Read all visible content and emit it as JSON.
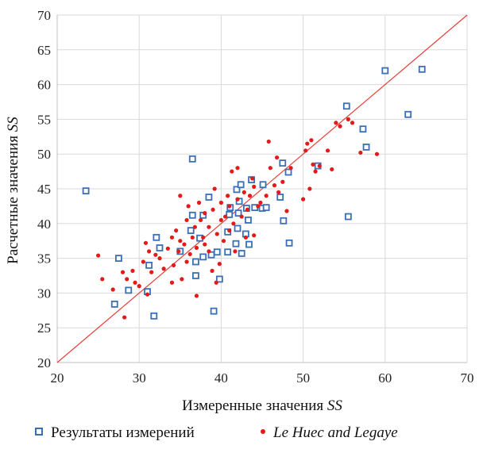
{
  "chart_data": {
    "type": "scatter",
    "xlabel": "Измеренные значения",
    "xlabel_symbol": "SS",
    "ylabel": "Расчетные значения",
    "ylabel_symbol": "SS",
    "xlim": [
      20,
      70
    ],
    "ylim": [
      20,
      70
    ],
    "xticks": [
      20,
      30,
      40,
      50,
      60,
      70
    ],
    "yticks": [
      20,
      25,
      30,
      35,
      40,
      45,
      50,
      55,
      60,
      65,
      70
    ],
    "grid": true,
    "legend_position": "bottom",
    "reference_line": {
      "name": "y = x",
      "from": [
        20,
        20
      ],
      "to": [
        70,
        70
      ],
      "color": "#e8403a"
    },
    "series": [
      {
        "name": "Результаты измерений",
        "marker": "open-square",
        "color": "#3a6fb5",
        "points": [
          [
            23.5,
            44.7
          ],
          [
            27.0,
            28.4
          ],
          [
            27.5,
            35.0
          ],
          [
            28.7,
            30.4
          ],
          [
            31.0,
            30.2
          ],
          [
            31.2,
            34.0
          ],
          [
            31.8,
            26.7
          ],
          [
            32.1,
            38.0
          ],
          [
            32.5,
            36.5
          ],
          [
            35.0,
            36.0
          ],
          [
            36.3,
            39.0
          ],
          [
            36.5,
            49.3
          ],
          [
            36.5,
            41.2
          ],
          [
            36.9,
            34.5
          ],
          [
            36.9,
            32.5
          ],
          [
            37.4,
            37.9
          ],
          [
            37.8,
            41.2
          ],
          [
            37.8,
            35.2
          ],
          [
            38.5,
            43.8
          ],
          [
            38.8,
            35.5
          ],
          [
            39.1,
            27.4
          ],
          [
            39.5,
            35.9
          ],
          [
            39.8,
            32.0
          ],
          [
            40.8,
            38.8
          ],
          [
            40.8,
            35.9
          ],
          [
            41.0,
            41.3
          ],
          [
            41.1,
            42.3
          ],
          [
            41.8,
            37.1
          ],
          [
            41.9,
            44.9
          ],
          [
            42.0,
            39.3
          ],
          [
            42.1,
            41.5
          ],
          [
            42.2,
            43.2
          ],
          [
            42.4,
            45.6
          ],
          [
            42.5,
            35.7
          ],
          [
            43.0,
            38.5
          ],
          [
            43.1,
            42.2
          ],
          [
            43.3,
            40.5
          ],
          [
            43.4,
            37.0
          ],
          [
            43.7,
            46.3
          ],
          [
            44.1,
            42.3
          ],
          [
            45.0,
            42.2
          ],
          [
            45.1,
            45.6
          ],
          [
            45.5,
            42.3
          ],
          [
            47.2,
            43.8
          ],
          [
            47.5,
            48.7
          ],
          [
            47.6,
            40.4
          ],
          [
            48.2,
            47.4
          ],
          [
            48.3,
            37.2
          ],
          [
            51.8,
            48.3
          ],
          [
            55.5,
            41.0
          ],
          [
            55.3,
            56.9
          ],
          [
            57.3,
            53.6
          ],
          [
            57.7,
            51.0
          ],
          [
            60.0,
            62.0
          ],
          [
            62.8,
            55.7
          ],
          [
            64.5,
            62.2
          ]
        ]
      },
      {
        "name": "Le Huec and Legaye",
        "marker": "filled-circle",
        "color": "#e21a1a",
        "points": [
          [
            25.0,
            35.4
          ],
          [
            25.5,
            32.0
          ],
          [
            26.8,
            30.5
          ],
          [
            28.0,
            33.0
          ],
          [
            28.2,
            26.5
          ],
          [
            28.5,
            32.0
          ],
          [
            29.2,
            33.2
          ],
          [
            29.5,
            31.5
          ],
          [
            30.0,
            31.0
          ],
          [
            30.5,
            34.5
          ],
          [
            30.8,
            37.2
          ],
          [
            31.0,
            29.8
          ],
          [
            31.2,
            36.0
          ],
          [
            31.5,
            33.0
          ],
          [
            32.0,
            35.5
          ],
          [
            32.5,
            35.0
          ],
          [
            33.0,
            33.5
          ],
          [
            33.5,
            36.4
          ],
          [
            34.0,
            38.0
          ],
          [
            34.0,
            31.5
          ],
          [
            34.2,
            34.0
          ],
          [
            34.5,
            39.0
          ],
          [
            34.8,
            36.0
          ],
          [
            35.0,
            37.5
          ],
          [
            35.0,
            44.0
          ],
          [
            35.2,
            32.0
          ],
          [
            35.5,
            37.0
          ],
          [
            35.8,
            40.5
          ],
          [
            35.8,
            34.5
          ],
          [
            36.0,
            42.5
          ],
          [
            36.2,
            35.6
          ],
          [
            36.5,
            38.0
          ],
          [
            36.8,
            39.5
          ],
          [
            37.0,
            29.6
          ],
          [
            37.0,
            36.5
          ],
          [
            37.3,
            43.0
          ],
          [
            37.5,
            40.5
          ],
          [
            37.8,
            38.0
          ],
          [
            38.0,
            41.5
          ],
          [
            38.0,
            37.0
          ],
          [
            38.5,
            39.5
          ],
          [
            38.5,
            36.0
          ],
          [
            38.9,
            33.2
          ],
          [
            39.0,
            42.0
          ],
          [
            39.2,
            45.0
          ],
          [
            39.4,
            31.5
          ],
          [
            39.5,
            38.5
          ],
          [
            39.8,
            34.2
          ],
          [
            40.0,
            40.5
          ],
          [
            40.0,
            43.0
          ],
          [
            40.3,
            37.5
          ],
          [
            40.5,
            41.0
          ],
          [
            40.8,
            44.0
          ],
          [
            41.0,
            39.0
          ],
          [
            41.0,
            42.5
          ],
          [
            41.3,
            47.5
          ],
          [
            41.5,
            40.0
          ],
          [
            41.7,
            36.0
          ],
          [
            42.0,
            43.5
          ],
          [
            42.0,
            48.0
          ],
          [
            42.5,
            41.0
          ],
          [
            42.8,
            44.5
          ],
          [
            43.0,
            38.0
          ],
          [
            43.2,
            42.0
          ],
          [
            43.5,
            44.0
          ],
          [
            43.8,
            46.5
          ],
          [
            44.0,
            45.3
          ],
          [
            44.0,
            38.3
          ],
          [
            44.5,
            42.5
          ],
          [
            44.8,
            43.0
          ],
          [
            45.5,
            44.0
          ],
          [
            45.8,
            51.8
          ],
          [
            46.0,
            48.0
          ],
          [
            46.5,
            45.5
          ],
          [
            46.8,
            49.5
          ],
          [
            47.0,
            44.5
          ],
          [
            47.5,
            46.0
          ],
          [
            48.0,
            41.8
          ],
          [
            48.5,
            48.0
          ],
          [
            50.0,
            43.5
          ],
          [
            50.3,
            50.5
          ],
          [
            50.5,
            51.5
          ],
          [
            50.8,
            45.0
          ],
          [
            51.0,
            52.0
          ],
          [
            51.2,
            48.5
          ],
          [
            51.5,
            47.5
          ],
          [
            52.0,
            48.3
          ],
          [
            53.0,
            50.5
          ],
          [
            53.5,
            47.8
          ],
          [
            54.0,
            54.5
          ],
          [
            54.5,
            54.0
          ],
          [
            55.5,
            55.0
          ],
          [
            56.0,
            54.5
          ],
          [
            57.0,
            50.2
          ],
          [
            59.0,
            50.0
          ]
        ]
      }
    ]
  }
}
